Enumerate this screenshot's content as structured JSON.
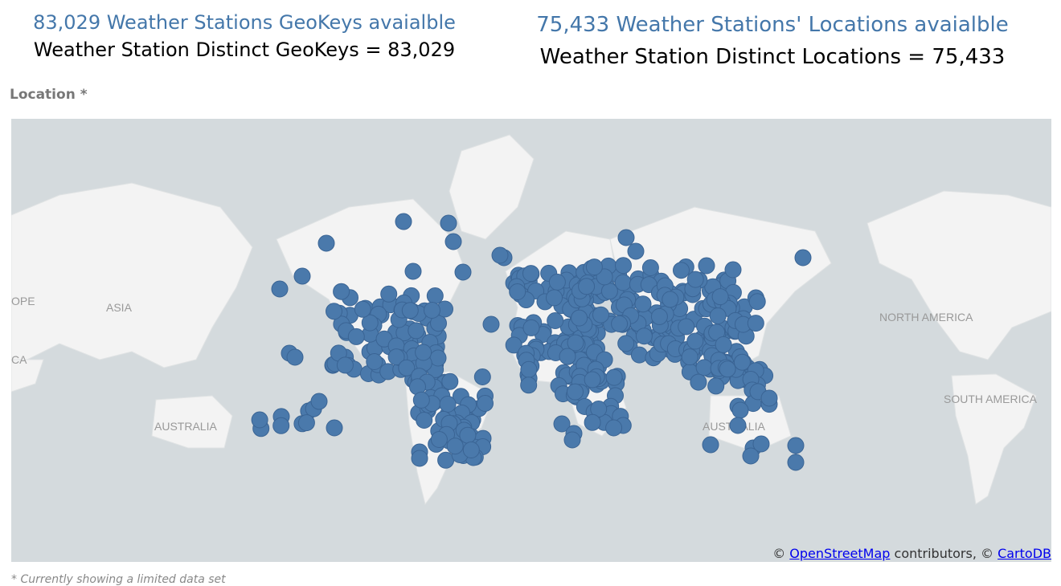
{
  "kpis": [
    {
      "title": "83,029 Weather Stations GeoKeys avaialble",
      "value": "Weather Station Distinct GeoKeys = 83,029"
    },
    {
      "title": "75,433 Weather Stations' Locations avaialble",
      "value": "Weather Station Distinct Locations = 75,433"
    }
  ],
  "map": {
    "title": "Location *",
    "labels": [
      "OPE",
      "ASIA",
      "CA",
      "AUSTRALIA",
      "NORTH AMERICA",
      "SOUTH AMERICA",
      "AUSTRALIA"
    ],
    "attribution": {
      "prefix": "©",
      "osm": "OpenStreetMap",
      "middle": "contributors, ©",
      "carto": "CartoDB"
    }
  },
  "footnote": "* Currently showing a limited data set"
}
